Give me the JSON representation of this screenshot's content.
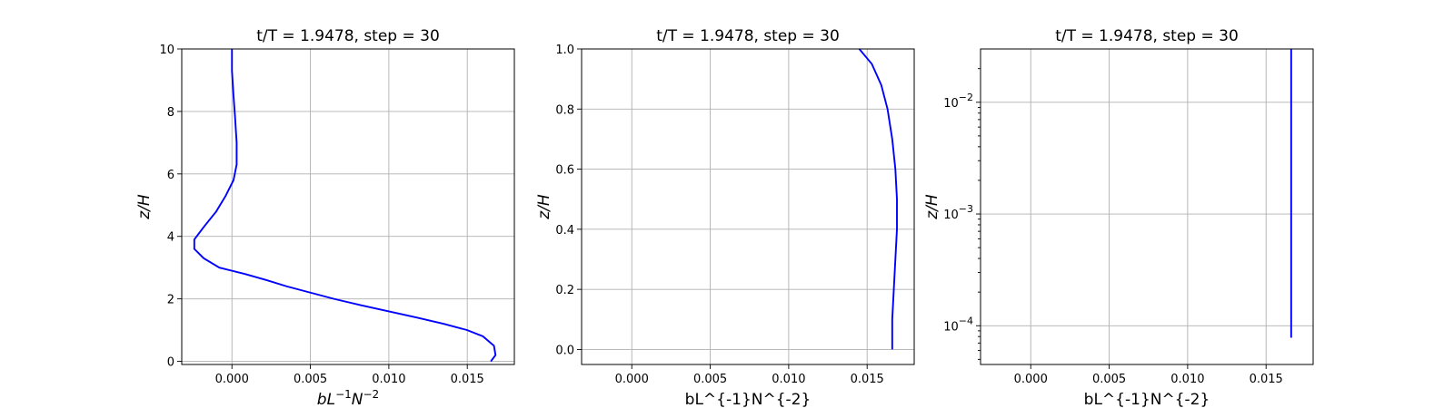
{
  "chart_data": [
    {
      "type": "line",
      "title": "t/T = 1.9478, step = 30",
      "xlabel": {
        "base": "bL",
        "exp1": "−1",
        "mid": "N",
        "exp2": "−2"
      },
      "ylabel": "z/H",
      "xlim": [
        -0.0032,
        0.018
      ],
      "ylim": [
        -0.1,
        10
      ],
      "yscale": "linear",
      "xticks": [
        0.0,
        0.005,
        0.01,
        0.015
      ],
      "xtick_labels": [
        "0.000",
        "0.005",
        "0.010",
        "0.015"
      ],
      "yticks": [
        0,
        2,
        4,
        6,
        8,
        10
      ],
      "ytick_labels": [
        "0",
        "2",
        "4",
        "6",
        "8",
        "10"
      ],
      "grid": true,
      "color": "#0000ff",
      "series": [
        {
          "x": [
            0.0165,
            0.0168,
            0.0167,
            0.016,
            0.015,
            0.0135,
            0.0118,
            0.01,
            0.0082,
            0.0065,
            0.005,
            0.0035,
            0.0022,
            0.0008,
            -0.0008,
            -0.0018,
            -0.0024,
            -0.0024,
            -0.0018,
            -0.001,
            -0.0004,
            0.0001,
            0.0003,
            0.0003,
            0.0002,
            0.0001,
            0.0,
            0.0
          ],
          "y": [
            0.0,
            0.2,
            0.5,
            0.8,
            1.0,
            1.2,
            1.4,
            1.6,
            1.8,
            2.0,
            2.2,
            2.4,
            2.6,
            2.8,
            3.0,
            3.3,
            3.6,
            3.9,
            4.3,
            4.8,
            5.3,
            5.8,
            6.3,
            7.0,
            7.8,
            8.5,
            9.3,
            10.0
          ]
        }
      ]
    },
    {
      "type": "line",
      "title": "t/T = 1.9478, step = 30",
      "xlabel": "bL^{-1}N^{-2}",
      "ylabel": "z/H",
      "xlim": [
        -0.0032,
        0.018
      ],
      "ylim": [
        -0.05,
        1.0
      ],
      "yscale": "linear",
      "xticks": [
        0.0,
        0.005,
        0.01,
        0.015
      ],
      "xtick_labels": [
        "0.000",
        "0.005",
        "0.010",
        "0.015"
      ],
      "yticks": [
        0.0,
        0.2,
        0.4,
        0.6,
        0.8,
        1.0
      ],
      "ytick_labels": [
        "0.0",
        "0.2",
        "0.4",
        "0.6",
        "0.8",
        "1.0"
      ],
      "grid": true,
      "color": "#0000ff",
      "series": [
        {
          "x": [
            0.0166,
            0.0166,
            0.0167,
            0.0168,
            0.0169,
            0.0169,
            0.0168,
            0.0166,
            0.0163,
            0.0159,
            0.0153,
            0.0145
          ],
          "y": [
            0.0,
            0.1,
            0.2,
            0.3,
            0.4,
            0.5,
            0.6,
            0.7,
            0.8,
            0.88,
            0.95,
            1.0
          ]
        }
      ]
    },
    {
      "type": "line",
      "title": "t/T = 1.9478, step = 30",
      "xlabel": "bL^{-1}N^{-2}",
      "ylabel": "z/H",
      "xlim": [
        -0.0032,
        0.018
      ],
      "ylim": [
        4.5e-05,
        0.03
      ],
      "yscale": "log",
      "xticks": [
        0.0,
        0.005,
        0.01,
        0.015
      ],
      "xtick_labels": [
        "0.000",
        "0.005",
        "0.010",
        "0.015"
      ],
      "yticks": [
        0.0001,
        0.001,
        0.01
      ],
      "ytick_labels": [
        {
          "base": "10",
          "exp": "−4"
        },
        {
          "base": "10",
          "exp": "−3"
        },
        {
          "base": "10",
          "exp": "−2"
        }
      ],
      "grid": true,
      "color": "#0000ff",
      "series": [
        {
          "x": [
            0.0166,
            0.0166
          ],
          "y": [
            7.8e-05,
            0.03
          ]
        }
      ]
    }
  ]
}
